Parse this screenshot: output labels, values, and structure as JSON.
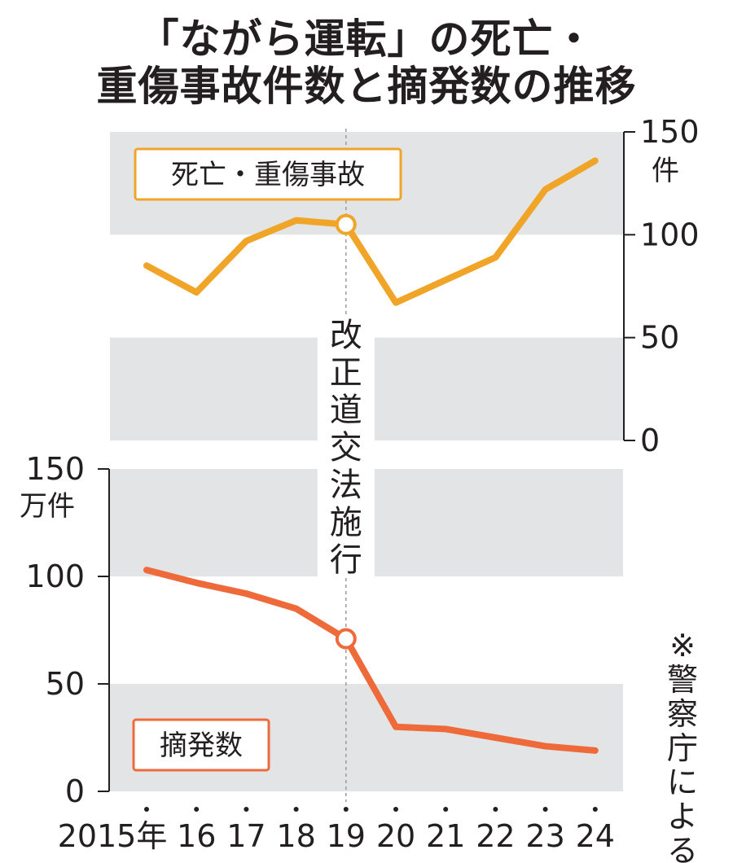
{
  "title": {
    "line1": "「ながら運転」の死亡・",
    "line2": "重傷事故件数と摘発数の推移"
  },
  "annotation": "改正道交法施行",
  "source": "※警察庁による",
  "colors": {
    "accidents_line": "#f0a529",
    "arrests_line": "#ee6a3a",
    "band": "#e3e4e5",
    "axis": "#231f20",
    "marker_line": "#9a9a9a"
  },
  "chart_data": [
    {
      "type": "line",
      "x": [
        "2015年",
        "16",
        "17",
        "18",
        "19",
        "20",
        "21",
        "22",
        "23",
        "24"
      ],
      "series": [
        {
          "name": "死亡・重傷事故",
          "values": [
            85,
            72,
            97,
            107,
            105,
            67,
            78,
            89,
            122,
            136
          ]
        }
      ],
      "ylim": [
        0,
        150
      ],
      "yticks": [
        "150",
        "100",
        "50",
        "0"
      ],
      "ylabel": "件",
      "y_axis_side": "right",
      "highlight_index": 4,
      "grid_bands": true
    },
    {
      "type": "line",
      "x": [
        "2015年",
        "16",
        "17",
        "18",
        "19",
        "20",
        "21",
        "22",
        "23",
        "24"
      ],
      "series": [
        {
          "name": "摘発数",
          "values": [
            103,
            97,
            92,
            85,
            71,
            30,
            29,
            25,
            21,
            19
          ]
        }
      ],
      "ylim": [
        0,
        150
      ],
      "yticks": [
        "150",
        "100",
        "50",
        "0"
      ],
      "ylabel": "万件",
      "y_axis_side": "left",
      "highlight_index": 4,
      "grid_bands": true
    }
  ]
}
